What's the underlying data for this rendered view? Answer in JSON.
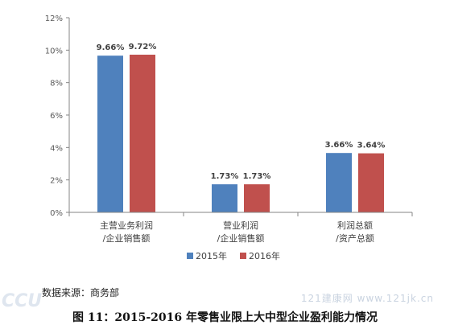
{
  "chart_data": {
    "type": "bar",
    "categories": [
      [
        "主营业务利润",
        "/企业销售额"
      ],
      [
        "营业利润",
        "/企业销售额"
      ],
      [
        "利润总额",
        "/资产总额"
      ]
    ],
    "series": [
      {
        "name": "2015年",
        "color": "#4f81bd",
        "values": [
          9.66,
          1.73,
          3.66
        ],
        "labels": [
          "9.66%",
          "1.73%",
          "3.66%"
        ]
      },
      {
        "name": "2016年",
        "color": "#c0504d",
        "values": [
          9.72,
          1.73,
          3.64
        ],
        "labels": [
          "9.72%",
          "1.73%",
          "3.64%"
        ]
      }
    ],
    "ylim": [
      0,
      12
    ],
    "yticks": [
      0,
      2,
      4,
      6,
      8,
      10,
      12
    ],
    "ytick_labels": [
      "0%",
      "2%",
      "4%",
      "6%",
      "8%",
      "10%",
      "12%"
    ],
    "legend_position": "bottom",
    "grid": false
  },
  "source": "数据来源：商务部",
  "caption": "图 11：2015-2016 年零售业限上大中型企业盈利能力情况",
  "watermark": "121建康网 www.121jk.cn",
  "watermark_logo": "CCU"
}
